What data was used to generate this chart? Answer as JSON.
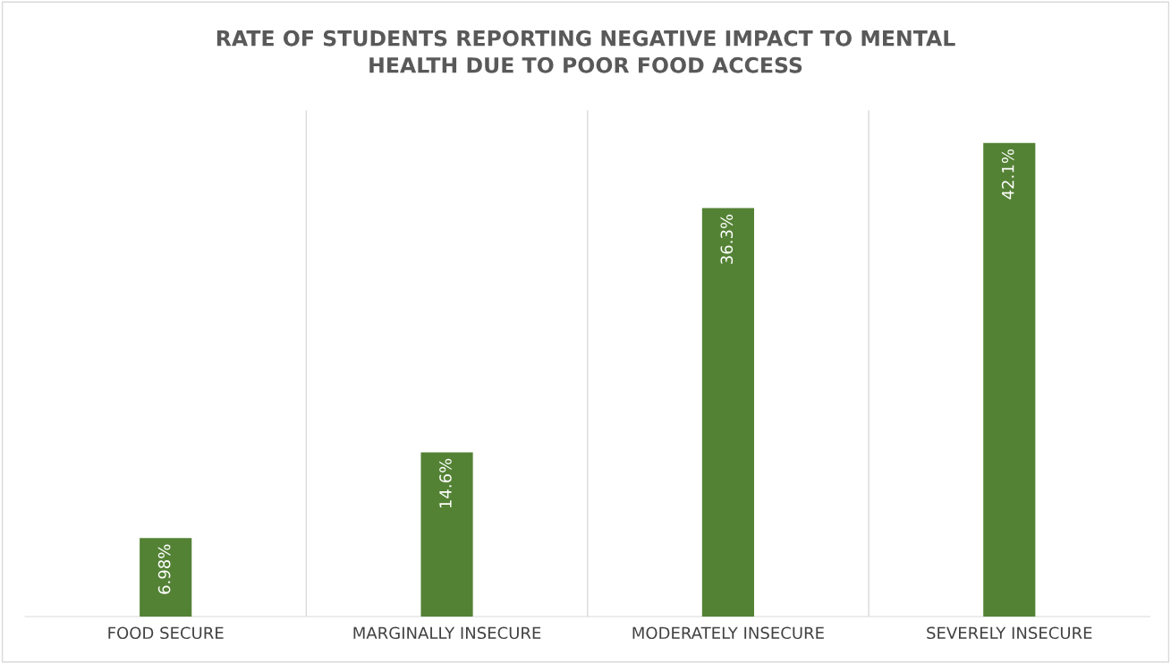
{
  "chart_data": {
    "type": "bar",
    "title": "RATE OF STUDENTS REPORTING NEGATIVE IMPACT TO MENTAL\nHEALTH DUE TO POOR FOOD ACCESS",
    "categories": [
      "FOOD SECURE",
      "MARGINALLY INSECURE",
      "MODERATELY INSECURE",
      "SEVERELY INSECURE"
    ],
    "values": [
      6.98,
      14.6,
      36.3,
      42.1
    ],
    "value_labels": [
      "6.98%",
      "14.6%",
      "36.3%",
      "42.1%"
    ],
    "color": "#548235",
    "ylim": [
      0,
      45
    ],
    "grid": "x",
    "tick_labels": "x"
  }
}
